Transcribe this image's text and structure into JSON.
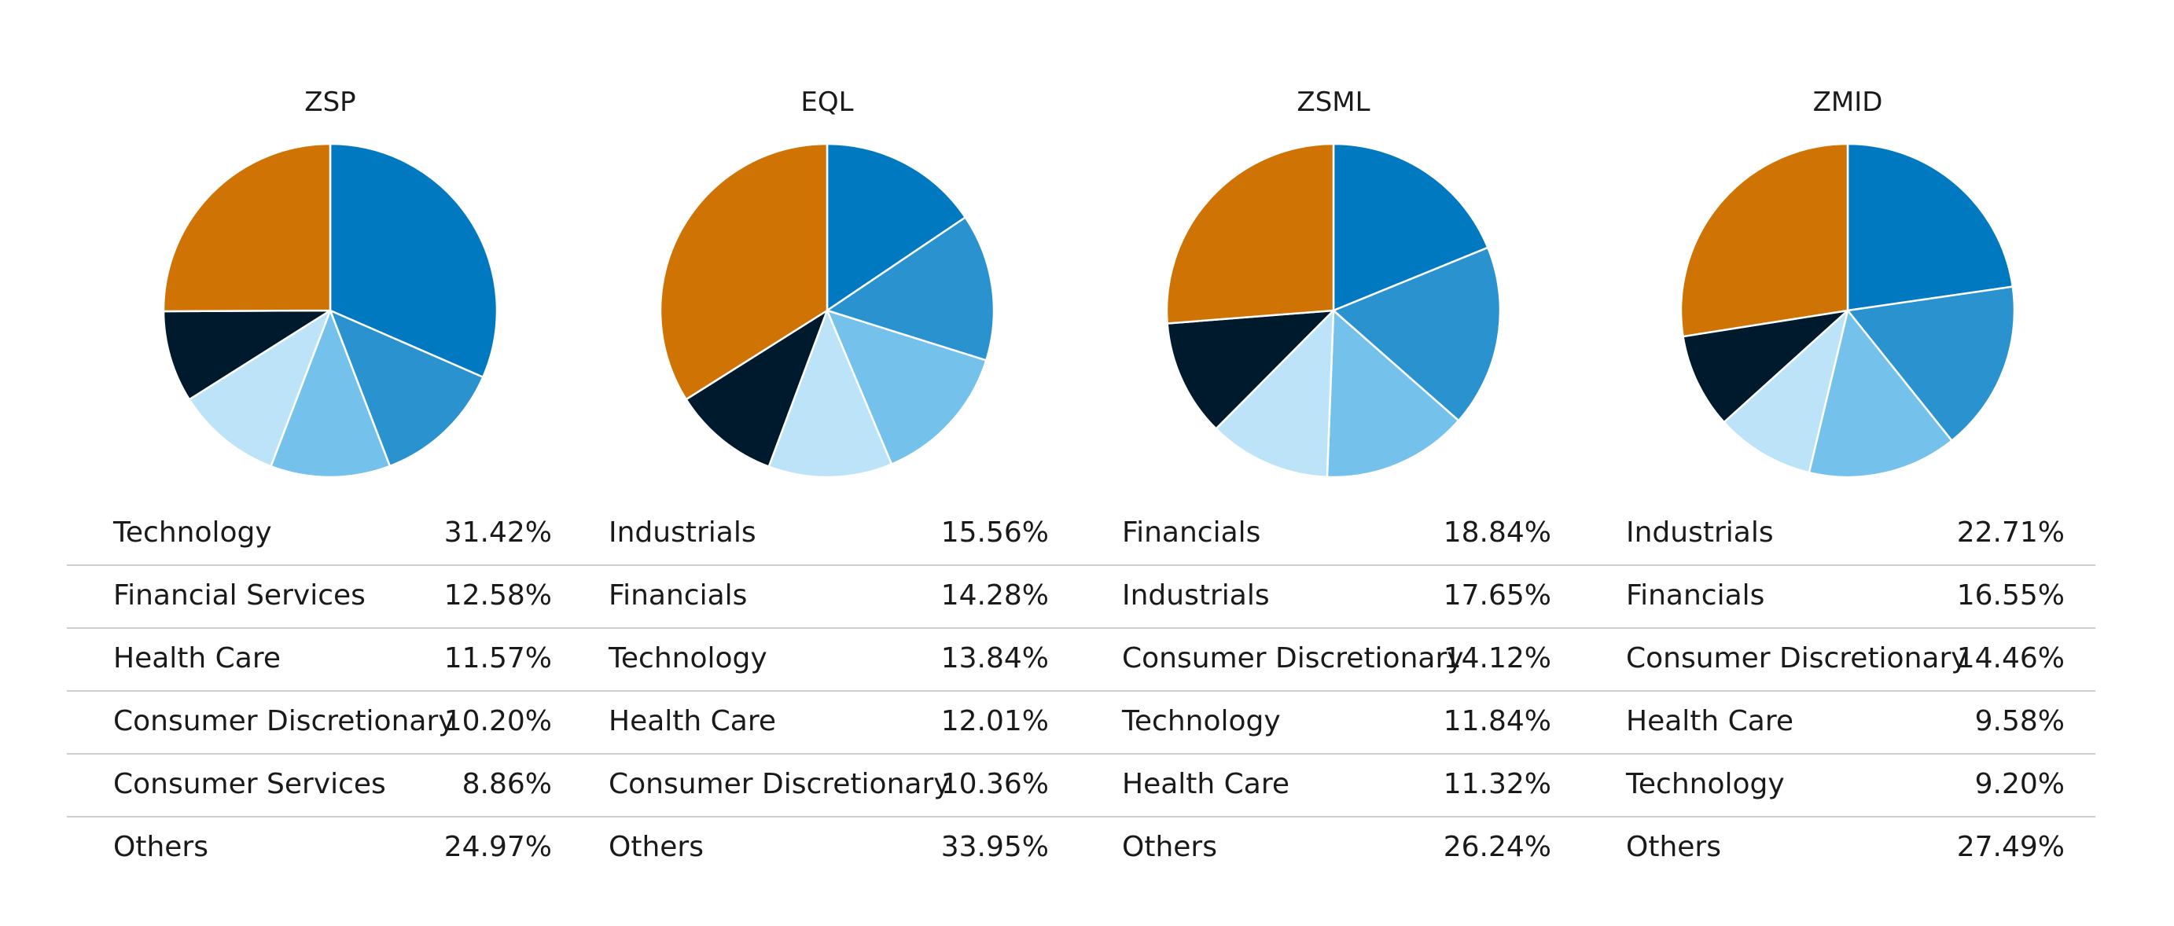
{
  "colors": {
    "slice1": "#0079c1",
    "slice2": "#2b92d0",
    "slice3": "#74c2ec",
    "slice4": "#bde3f9",
    "slice5": "#001a2d",
    "others": "#cf7404"
  },
  "chart_data": [
    {
      "type": "pie",
      "title": "ZSP",
      "categories": [
        "Technology",
        "Financial Services",
        "Health Care",
        "Consumer Discretionary",
        "Consumer Services",
        "Others"
      ],
      "labels": [
        "31.42%",
        "12.58%",
        "11.57%",
        "10.20%",
        "8.86%",
        "24.97%"
      ],
      "values": [
        31.42,
        12.58,
        11.57,
        10.2,
        8.86,
        24.97
      ]
    },
    {
      "type": "pie",
      "title": "EQL",
      "categories": [
        "Industrials",
        "Financials",
        "Technology",
        "Health Care",
        "Consumer Discretionary",
        "Others"
      ],
      "labels": [
        "15.56%",
        "14.28%",
        "13.84%",
        "12.01%",
        "10.36%",
        "33.95%"
      ],
      "values": [
        15.56,
        14.28,
        13.84,
        12.01,
        10.36,
        33.95
      ]
    },
    {
      "type": "pie",
      "title": "ZSML",
      "categories": [
        "Financials",
        "Industrials",
        "Consumer Discretionary",
        "Technology",
        "Health Care",
        "Others"
      ],
      "labels": [
        "18.84%",
        "17.65%",
        "14.12%",
        "11.84%",
        "11.32%",
        "26.24%"
      ],
      "values": [
        18.84,
        17.65,
        14.12,
        11.84,
        11.32,
        26.24
      ]
    },
    {
      "type": "pie",
      "title": "ZMID",
      "categories": [
        "Industrials",
        "Financials",
        "Consumer Discretionary",
        "Health Care",
        "Technology",
        "Others"
      ],
      "labels": [
        "22.71%",
        "16.55%",
        "14.46%",
        "9.58%",
        "9.20%",
        "27.49%"
      ],
      "values": [
        22.71,
        16.55,
        14.46,
        9.58,
        9.2,
        27.49
      ]
    }
  ]
}
